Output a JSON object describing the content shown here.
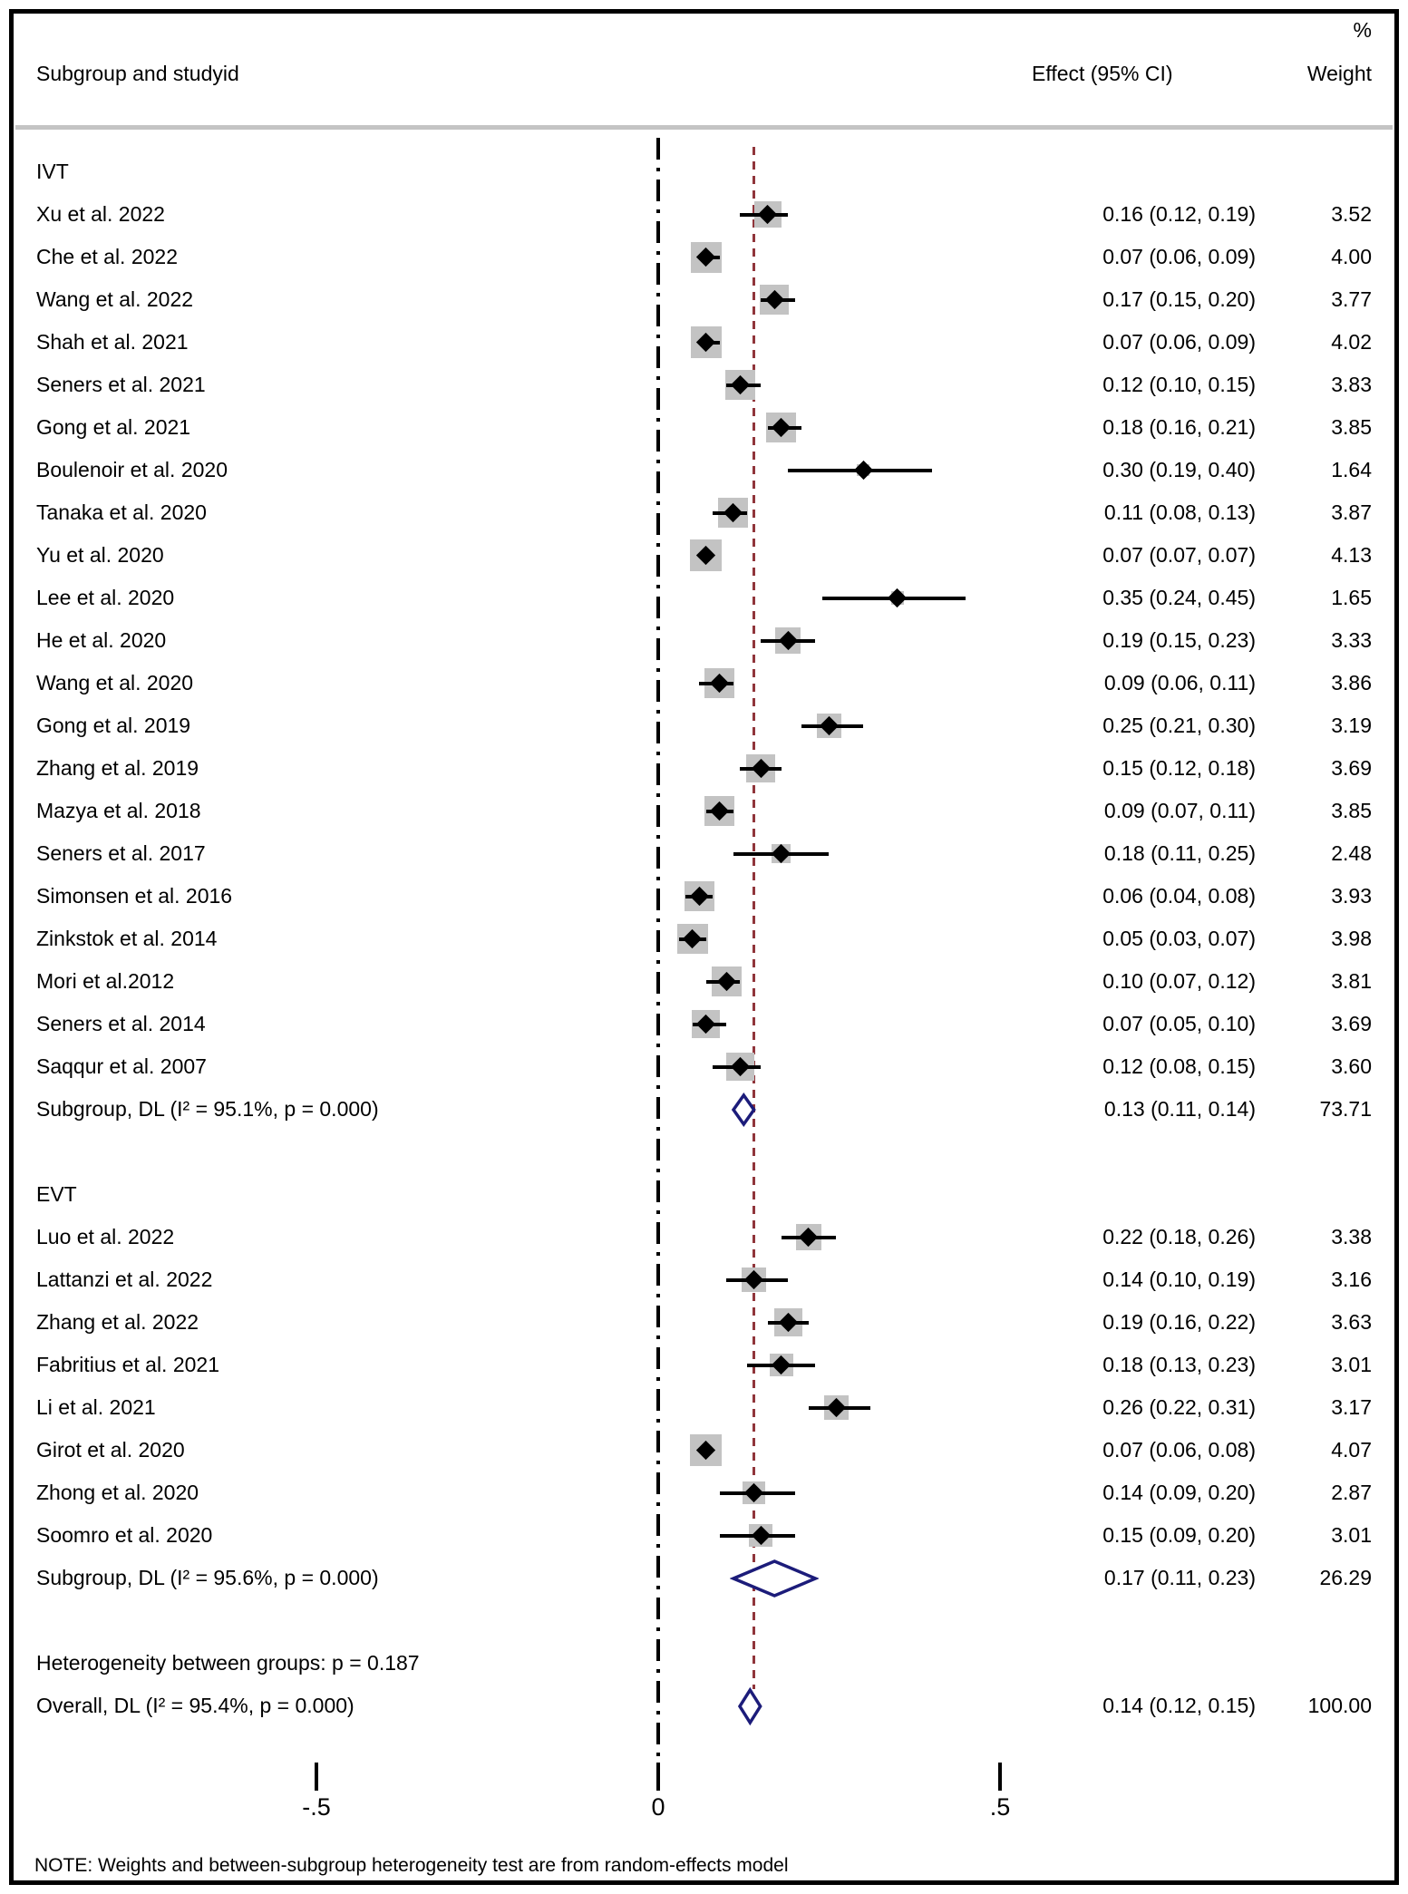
{
  "header": {
    "percent_label": "%",
    "subgroup_col": "Subgroup and studyid",
    "effect_col": "Effect (95% CI)",
    "weight_col": "Weight"
  },
  "note": "NOTE: Weights and between-subgroup heterogeneity test are from random-effects model",
  "colors": {
    "summary_diamond": "#1c1c7a",
    "reference_line": "#90353b",
    "ci_square": "#c3c3c3",
    "marker": "#000000",
    "divider": "#c4c4c4"
  },
  "chart_data": {
    "type": "forest",
    "title": "",
    "x_axis": {
      "tick_values": [
        -0.5,
        0,
        0.5
      ],
      "tick_labels": [
        "-.5",
        "0",
        ".5"
      ],
      "zero_line": 0,
      "reference_line": 0.14
    },
    "groups": [
      {
        "name": "IVT",
        "studies": [
          {
            "label": "Xu et al. 2022",
            "effect": 0.16,
            "lo": 0.12,
            "hi": 0.19,
            "weight": 3.52,
            "effect_text": "0.16 (0.12, 0.19)",
            "weight_text": "3.52"
          },
          {
            "label": "Che et al. 2022",
            "effect": 0.07,
            "lo": 0.06,
            "hi": 0.09,
            "weight": 4.0,
            "effect_text": "0.07 (0.06, 0.09)",
            "weight_text": "4.00"
          },
          {
            "label": "Wang et al. 2022",
            "effect": 0.17,
            "lo": 0.15,
            "hi": 0.2,
            "weight": 3.77,
            "effect_text": "0.17 (0.15, 0.20)",
            "weight_text": "3.77"
          },
          {
            "label": "Shah et al. 2021",
            "effect": 0.07,
            "lo": 0.06,
            "hi": 0.09,
            "weight": 4.02,
            "effect_text": "0.07 (0.06, 0.09)",
            "weight_text": "4.02"
          },
          {
            "label": "Seners et al. 2021",
            "effect": 0.12,
            "lo": 0.1,
            "hi": 0.15,
            "weight": 3.83,
            "effect_text": "0.12 (0.10, 0.15)",
            "weight_text": "3.83"
          },
          {
            "label": "Gong et al. 2021",
            "effect": 0.18,
            "lo": 0.16,
            "hi": 0.21,
            "weight": 3.85,
            "effect_text": "0.18 (0.16, 0.21)",
            "weight_text": "3.85"
          },
          {
            "label": "Boulenoir et al. 2020",
            "effect": 0.3,
            "lo": 0.19,
            "hi": 0.4,
            "weight": 1.64,
            "effect_text": "0.30 (0.19, 0.40)",
            "weight_text": "1.64"
          },
          {
            "label": "Tanaka et al. 2020",
            "effect": 0.11,
            "lo": 0.08,
            "hi": 0.13,
            "weight": 3.87,
            "effect_text": "0.11 (0.08, 0.13)",
            "weight_text": "3.87"
          },
          {
            "label": "Yu et al. 2020",
            "effect": 0.07,
            "lo": 0.07,
            "hi": 0.07,
            "weight": 4.13,
            "effect_text": "0.07 (0.07, 0.07)",
            "weight_text": "4.13"
          },
          {
            "label": "Lee et al. 2020",
            "effect": 0.35,
            "lo": 0.24,
            "hi": 0.45,
            "weight": 1.65,
            "effect_text": "0.35 (0.24, 0.45)",
            "weight_text": "1.65"
          },
          {
            "label": "He et al. 2020",
            "effect": 0.19,
            "lo": 0.15,
            "hi": 0.23,
            "weight": 3.33,
            "effect_text": "0.19 (0.15, 0.23)",
            "weight_text": "3.33"
          },
          {
            "label": "Wang et al. 2020",
            "effect": 0.09,
            "lo": 0.06,
            "hi": 0.11,
            "weight": 3.86,
            "effect_text": "0.09 (0.06, 0.11)",
            "weight_text": "3.86"
          },
          {
            "label": "Gong et al. 2019",
            "effect": 0.25,
            "lo": 0.21,
            "hi": 0.3,
            "weight": 3.19,
            "effect_text": "0.25 (0.21, 0.30)",
            "weight_text": "3.19"
          },
          {
            "label": "Zhang et al. 2019",
            "effect": 0.15,
            "lo": 0.12,
            "hi": 0.18,
            "weight": 3.69,
            "effect_text": "0.15 (0.12, 0.18)",
            "weight_text": "3.69"
          },
          {
            "label": "Mazya et al. 2018",
            "effect": 0.09,
            "lo": 0.07,
            "hi": 0.11,
            "weight": 3.85,
            "effect_text": "0.09 (0.07, 0.11)",
            "weight_text": "3.85"
          },
          {
            "label": "Seners et al. 2017",
            "effect": 0.18,
            "lo": 0.11,
            "hi": 0.25,
            "weight": 2.48,
            "effect_text": "0.18 (0.11, 0.25)",
            "weight_text": "2.48"
          },
          {
            "label": "Simonsen et al. 2016",
            "effect": 0.06,
            "lo": 0.04,
            "hi": 0.08,
            "weight": 3.93,
            "effect_text": "0.06 (0.04, 0.08)",
            "weight_text": "3.93"
          },
          {
            "label": "Zinkstok et al. 2014",
            "effect": 0.05,
            "lo": 0.03,
            "hi": 0.07,
            "weight": 3.98,
            "effect_text": "0.05 (0.03, 0.07)",
            "weight_text": "3.98"
          },
          {
            "label": "Mori et al.2012",
            "effect": 0.1,
            "lo": 0.07,
            "hi": 0.12,
            "weight": 3.81,
            "effect_text": "0.10 (0.07, 0.12)",
            "weight_text": "3.81"
          },
          {
            "label": "Seners et al. 2014",
            "effect": 0.07,
            "lo": 0.05,
            "hi": 0.1,
            "weight": 3.69,
            "effect_text": "0.07 (0.05, 0.10)",
            "weight_text": "3.69"
          },
          {
            "label": "Saqqur et al. 2007",
            "effect": 0.12,
            "lo": 0.08,
            "hi": 0.15,
            "weight": 3.6,
            "effect_text": "0.12 (0.08, 0.15)",
            "weight_text": "3.60"
          }
        ],
        "subgroup": {
          "label": "Subgroup, DL (I² = 95.1%, p = 0.000)",
          "effect": 0.13,
          "lo": 0.11,
          "hi": 0.14,
          "effect_text": "0.13 (0.11, 0.14)",
          "weight_text": "73.71"
        }
      },
      {
        "name": "EVT",
        "studies": [
          {
            "label": "Luo et al. 2022",
            "effect": 0.22,
            "lo": 0.18,
            "hi": 0.26,
            "weight": 3.38,
            "effect_text": "0.22 (0.18, 0.26)",
            "weight_text": "3.38"
          },
          {
            "label": "Lattanzi et al. 2022",
            "effect": 0.14,
            "lo": 0.1,
            "hi": 0.19,
            "weight": 3.16,
            "effect_text": "0.14 (0.10, 0.19)",
            "weight_text": "3.16"
          },
          {
            "label": "Zhang et al. 2022",
            "effect": 0.19,
            "lo": 0.16,
            "hi": 0.22,
            "weight": 3.63,
            "effect_text": "0.19 (0.16, 0.22)",
            "weight_text": "3.63"
          },
          {
            "label": "Fabritius et al. 2021",
            "effect": 0.18,
            "lo": 0.13,
            "hi": 0.23,
            "weight": 3.01,
            "effect_text": "0.18 (0.13, 0.23)",
            "weight_text": "3.01"
          },
          {
            "label": "Li et al. 2021",
            "effect": 0.26,
            "lo": 0.22,
            "hi": 0.31,
            "weight": 3.17,
            "effect_text": "0.26 (0.22, 0.31)",
            "weight_text": "3.17"
          },
          {
            "label": "Girot et al. 2020",
            "effect": 0.07,
            "lo": 0.06,
            "hi": 0.08,
            "weight": 4.07,
            "effect_text": "0.07 (0.06, 0.08)",
            "weight_text": "4.07"
          },
          {
            "label": "Zhong et al. 2020",
            "effect": 0.14,
            "lo": 0.09,
            "hi": 0.2,
            "weight": 2.87,
            "effect_text": "0.14 (0.09, 0.20)",
            "weight_text": "2.87"
          },
          {
            "label": "Soomro et al. 2020",
            "effect": 0.15,
            "lo": 0.09,
            "hi": 0.2,
            "weight": 3.01,
            "effect_text": "0.15 (0.09, 0.20)",
            "weight_text": "3.01"
          }
        ],
        "subgroup": {
          "label": "Subgroup, DL (I² = 95.6%, p = 0.000)",
          "effect": 0.17,
          "lo": 0.11,
          "hi": 0.23,
          "effect_text": "0.17 (0.11, 0.23)",
          "weight_text": "26.29"
        }
      }
    ],
    "heterogeneity_label": "Heterogeneity between groups: p = 0.187",
    "overall": {
      "label": "Overall, DL (I² = 95.4%, p = 0.000)",
      "effect": 0.14,
      "lo": 0.12,
      "hi": 0.15,
      "effect_text": "0.14 (0.12, 0.15)",
      "weight_text": "100.00"
    }
  }
}
